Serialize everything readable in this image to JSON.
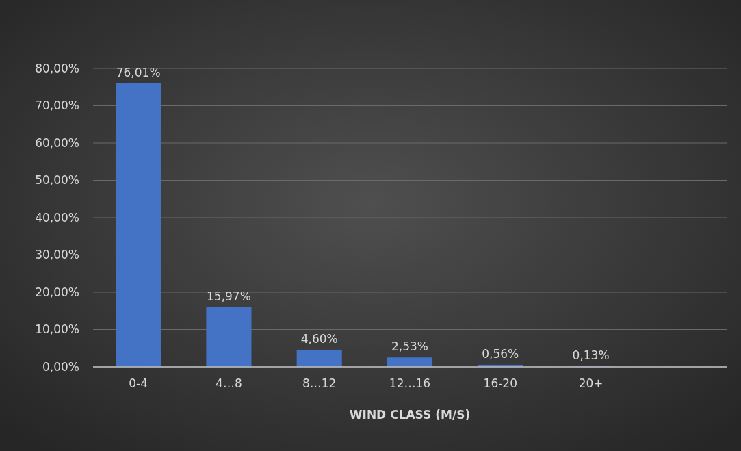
{
  "chart_data": {
    "type": "bar",
    "xlabel": "WIND CLASS (M/S)",
    "categories": [
      "0-4",
      "4…8",
      "8…12",
      "12…16",
      "16-20",
      "20+",
      null
    ],
    "values": [
      76.01,
      15.97,
      4.6,
      2.53,
      0.56,
      0.13,
      null
    ],
    "value_labels": [
      "76,01%",
      "15,97%",
      "4,60%",
      "2,53%",
      "0,56%",
      "0,13%",
      null
    ],
    "color": "#4472c4",
    "ylim": [
      0,
      80
    ],
    "yticks": [
      {
        "value": 0,
        "label": "0,00%"
      },
      {
        "value": 10,
        "label": "10,00%"
      },
      {
        "value": 20,
        "label": "20,00%"
      },
      {
        "value": 30,
        "label": "30,00%"
      },
      {
        "value": 40,
        "label": "40,00%"
      },
      {
        "value": 50,
        "label": "50,00%"
      },
      {
        "value": 60,
        "label": "60,00%"
      },
      {
        "value": 70,
        "label": "70,00%"
      },
      {
        "value": 80,
        "label": "80,00%"
      }
    ],
    "grid": "y"
  }
}
